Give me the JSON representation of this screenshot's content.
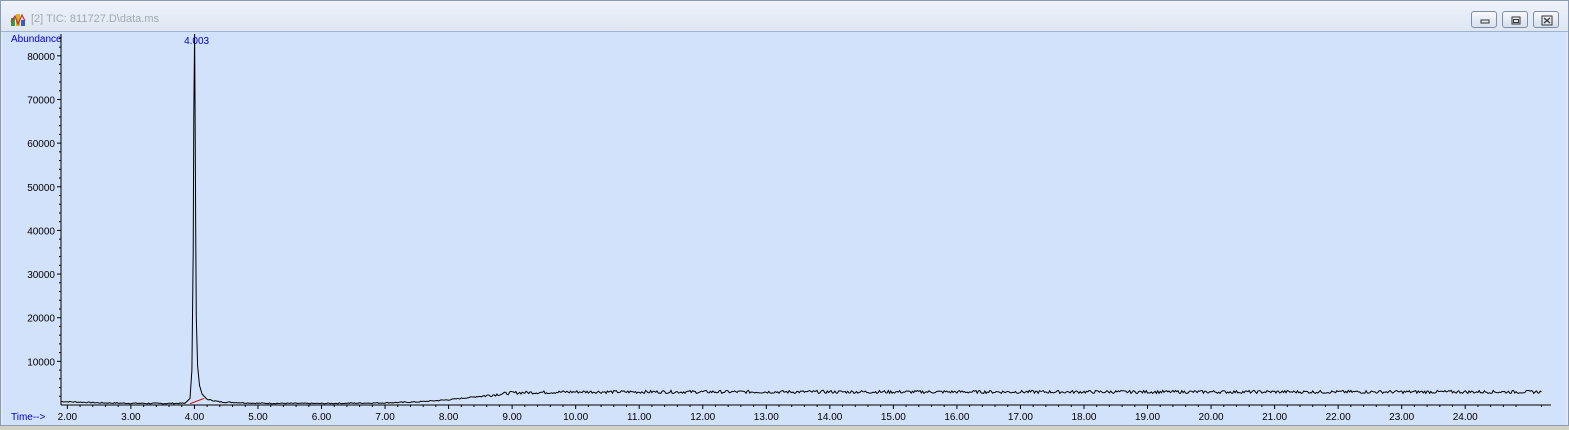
{
  "window": {
    "title": "[2] TIC: 811727.D\\data.ms",
    "icon": "chromatogram-app-icon",
    "buttons": [
      "minimize-icon",
      "restore-icon",
      "close-icon"
    ]
  },
  "colors": {
    "plot_background": "#d2e2fb",
    "trace": "#000000",
    "label_blue": "#0000cc",
    "baseline_marker": "#cc0000"
  },
  "chart_data": {
    "type": "line",
    "title": "",
    "xlabel": "Time-->",
    "ylabel": "Abundance",
    "xlim": [
      1.9,
      25.35
    ],
    "ylim": [
      0,
      85000
    ],
    "x_ticks": [
      2,
      3,
      4,
      5,
      6,
      7,
      8,
      9,
      10,
      11,
      12,
      13,
      14,
      15,
      16,
      17,
      18,
      19,
      20,
      21,
      22,
      23,
      24
    ],
    "x_tick_labels": [
      "2.00",
      "3.00",
      "4.00",
      "5.00",
      "6.00",
      "7.00",
      "8.00",
      "9.00",
      "10.00",
      "11.00",
      "12.00",
      "13.00",
      "14.00",
      "15.00",
      "16.00",
      "17.00",
      "18.00",
      "19.00",
      "20.00",
      "21.00",
      "22.00",
      "23.00",
      "24.00"
    ],
    "y_ticks": [
      10000,
      20000,
      30000,
      40000,
      50000,
      60000,
      70000,
      80000
    ],
    "y_tick_labels": [
      "10000",
      "20000",
      "30000",
      "40000",
      "50000",
      "60000",
      "70000",
      "80000"
    ],
    "grid": false,
    "legend": "none",
    "peak_annotation": {
      "label": "4.003",
      "x": 4.003
    },
    "series": [
      {
        "x": [
          1.9,
          2.5,
          3.0,
          3.5,
          3.85,
          3.93,
          3.96,
          3.98,
          3.99,
          4.0,
          4.003,
          4.01,
          4.02,
          4.03,
          4.05,
          4.08,
          4.12,
          4.2,
          4.4,
          5.0,
          6.0,
          7.0,
          7.5,
          8.0,
          8.5,
          9.0,
          10.0,
          12.0,
          15.0,
          18.0,
          21.0,
          24.0,
          25.2
        ],
        "y": [
          800,
          500,
          400,
          350,
          400,
          1500,
          8000,
          35000,
          67000,
          80000,
          85000,
          67000,
          40000,
          20000,
          9000,
          4500,
          2500,
          1300,
          700,
          400,
          350,
          500,
          700,
          1200,
          2000,
          2800,
          3000,
          3000,
          3000,
          3000,
          3000,
          3000,
          3000
        ]
      }
    ]
  }
}
